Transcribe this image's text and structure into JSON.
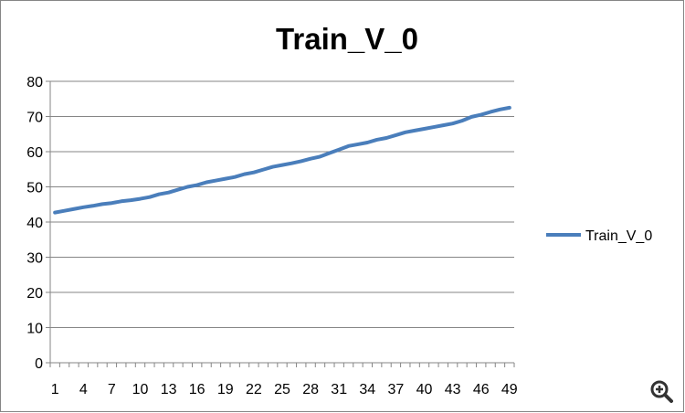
{
  "chart_data": {
    "type": "line",
    "title": "Train_V_0",
    "xlabel": "",
    "ylabel": "",
    "ylim": [
      0,
      80
    ],
    "yticks": [
      0,
      10,
      20,
      30,
      40,
      50,
      60,
      70,
      80
    ],
    "xtick_labels": [
      "1",
      "4",
      "7",
      "10",
      "13",
      "16",
      "19",
      "22",
      "25",
      "28",
      "31",
      "34",
      "37",
      "40",
      "43",
      "46",
      "49"
    ],
    "x": [
      1,
      2,
      3,
      4,
      5,
      6,
      7,
      8,
      9,
      10,
      11,
      12,
      13,
      14,
      15,
      16,
      17,
      18,
      19,
      20,
      21,
      22,
      23,
      24,
      25,
      26,
      27,
      28,
      29,
      30,
      31,
      32,
      33,
      34,
      35,
      36,
      37,
      38,
      39,
      40,
      41,
      42,
      43,
      44,
      45,
      46,
      47,
      48,
      49
    ],
    "grid": "horizontal",
    "legend": "right",
    "series": [
      {
        "name": "Train_V_0",
        "color": "#4a7ebb",
        "values": [
          42.7,
          43.2,
          43.7,
          44.2,
          44.6,
          45.1,
          45.4,
          45.9,
          46.2,
          46.6,
          47.1,
          47.9,
          48.4,
          49.2,
          50.0,
          50.5,
          51.3,
          51.8,
          52.3,
          52.8,
          53.6,
          54.1,
          54.9,
          55.7,
          56.2,
          56.7,
          57.3,
          58.0,
          58.6,
          59.6,
          60.6,
          61.6,
          62.1,
          62.6,
          63.4,
          63.9,
          64.7,
          65.5,
          66.0,
          66.5,
          67.0,
          67.5,
          68.0,
          68.8,
          69.9,
          70.5,
          71.3,
          72.0,
          72.5
        ]
      }
    ]
  }
}
